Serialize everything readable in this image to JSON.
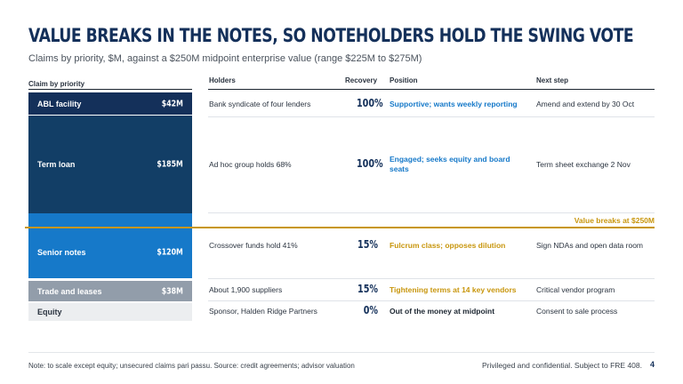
{
  "title": "VALUE BREAKS IN THE NOTES, SO NOTEHOLDERS HOLD THE SWING VOTE",
  "subtitle": "Claims by priority, $M, against a $250M midpoint enterprise value (range $225M to $275M)",
  "headers": {
    "claim": "Claim by priority",
    "holders": "Holders",
    "recovery": "Recovery",
    "position": "Position",
    "next_step": "Next step"
  },
  "colors": {
    "navy": "#14305a",
    "term_loan": "#123e66",
    "senior_notes": "#1679c9",
    "trade": "#929daa",
    "equity": "#eceef0",
    "blue_text": "#1679c9",
    "gold": "#c8960d"
  },
  "claims": [
    {
      "label": "ABL facility",
      "amount": "$42M",
      "value": 42,
      "holders": "Bank syndicate of four lenders",
      "recovery": "100%",
      "position": "Supportive; wants weekly reporting",
      "next_step": "Amend and extend by 30 Oct"
    },
    {
      "label": "Term loan",
      "amount": "$185M",
      "value": 185,
      "holders": "Ad hoc group holds 68%",
      "recovery": "100%",
      "position": "Engaged; seeks equity and board seats",
      "next_step": "Term sheet exchange 2 Nov"
    },
    {
      "label": "Senior notes",
      "amount": "$120M",
      "value": 120,
      "holders": "Crossover funds hold 41%",
      "recovery": "15%",
      "position": "Fulcrum class; opposes dilution",
      "next_step": "Sign NDAs and open data room"
    },
    {
      "label": "Trade and leases",
      "amount": "$38M",
      "value": 38,
      "holders": "About 1,900 suppliers",
      "recovery": "15%",
      "position": "Tightening terms at 14 key vendors",
      "next_step": "Critical vendor program"
    },
    {
      "label": "Equity",
      "holders": "Sponsor, Halden Ridge Partners",
      "recovery": "0%",
      "position": "Out of the money at midpoint",
      "next_step": "Consent to sale process"
    }
  ],
  "value_break_label": "Value breaks at $250M",
  "footer": {
    "note": "Note: to scale except equity; unsecured claims pari passu. Source: credit agreements; advisor valuation",
    "confidential": "Privileged and confidential. Subject to FRE 408.",
    "page": "4"
  }
}
